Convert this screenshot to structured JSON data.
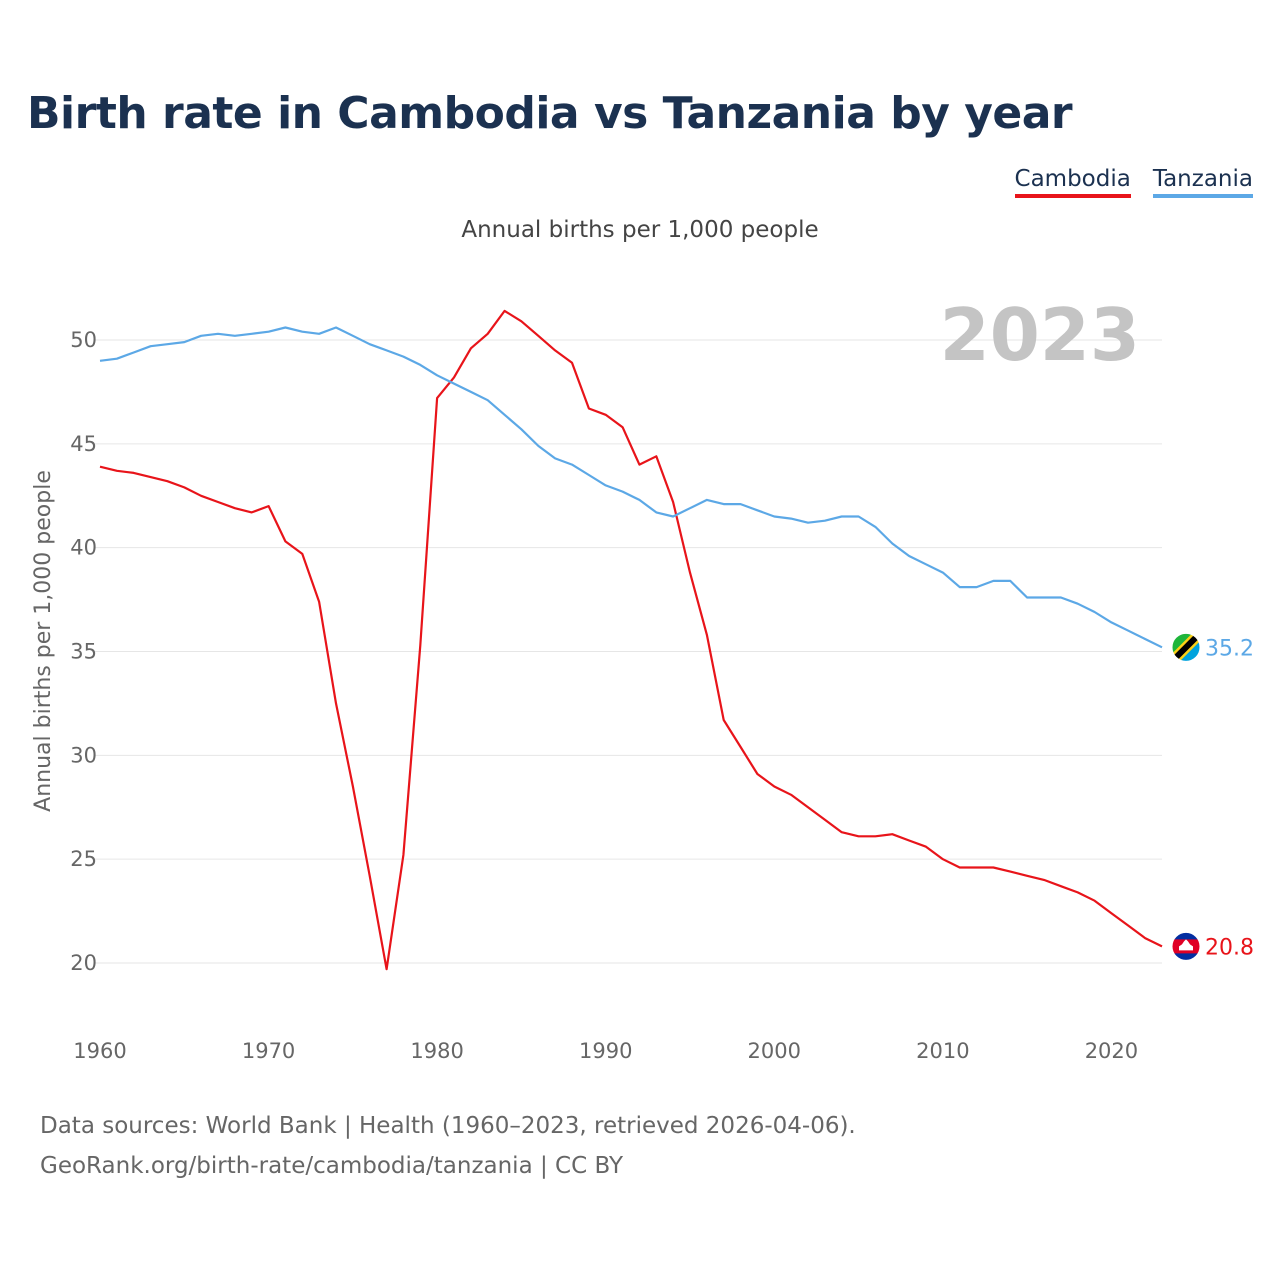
{
  "title": "Birth rate in Cambodia vs Tanzania by year",
  "subtitle": "Annual births per 1,000 people",
  "footer": {
    "line1": "Data sources: World Bank | Health (1960–2023, retrieved 2026-04-06).",
    "line2": "GeoRank.org/birth-rate/cambodia/tanzania | CC BY"
  },
  "chart_data": {
    "type": "line",
    "title": "Birth rate in Cambodia vs Tanzania by year",
    "ylabel": "Annual births per 1,000 people",
    "xlabel": "",
    "xlim": [
      1960,
      2023
    ],
    "ylim": [
      17,
      53
    ],
    "x_ticks": [
      1960,
      1970,
      1980,
      1990,
      2000,
      2010,
      2020
    ],
    "y_ticks": [
      20,
      25,
      30,
      35,
      40,
      45,
      50
    ],
    "grid": true,
    "year_label": "2023",
    "x": [
      1960,
      1961,
      1962,
      1963,
      1964,
      1965,
      1966,
      1967,
      1968,
      1969,
      1970,
      1971,
      1972,
      1973,
      1974,
      1975,
      1976,
      1977,
      1978,
      1979,
      1980,
      1981,
      1982,
      1983,
      1984,
      1985,
      1986,
      1987,
      1988,
      1989,
      1990,
      1991,
      1992,
      1993,
      1994,
      1995,
      1996,
      1997,
      1998,
      1999,
      2000,
      2001,
      2002,
      2003,
      2004,
      2005,
      2006,
      2007,
      2008,
      2009,
      2010,
      2011,
      2012,
      2013,
      2014,
      2015,
      2016,
      2017,
      2018,
      2019,
      2020,
      2021,
      2022,
      2023
    ],
    "series": [
      {
        "name": "Cambodia",
        "color": "#e8141a",
        "icon": "cambodia-flag-icon",
        "end_label": "20.8",
        "values": [
          43.9,
          43.7,
          43.6,
          43.4,
          43.2,
          42.9,
          42.5,
          42.2,
          41.9,
          41.7,
          42.0,
          40.3,
          39.7,
          37.4,
          32.5,
          28.5,
          24.2,
          19.7,
          25.2,
          35.3,
          47.2,
          48.2,
          49.6,
          50.3,
          51.4,
          50.9,
          50.2,
          49.5,
          48.9,
          46.7,
          46.4,
          45.8,
          44.0,
          44.4,
          42.2,
          38.8,
          35.8,
          31.7,
          30.4,
          29.1,
          28.5,
          28.1,
          27.5,
          26.9,
          26.3,
          26.1,
          26.1,
          26.2,
          25.9,
          25.6,
          25.0,
          24.6,
          24.6,
          24.6,
          24.4,
          24.2,
          24.0,
          23.7,
          23.4,
          23.0,
          22.4,
          21.8,
          21.2,
          20.8
        ]
      },
      {
        "name": "Tanzania",
        "color": "#5ca8e6",
        "icon": "tanzania-flag-icon",
        "end_label": "35.2",
        "values": [
          49.0,
          49.1,
          49.4,
          49.7,
          49.8,
          49.9,
          50.2,
          50.3,
          50.2,
          50.3,
          50.4,
          50.6,
          50.4,
          50.3,
          50.6,
          50.2,
          49.8,
          49.5,
          49.2,
          48.8,
          48.3,
          47.9,
          47.5,
          47.1,
          46.4,
          45.7,
          44.9,
          44.3,
          44.0,
          43.5,
          43.0,
          42.7,
          42.3,
          41.7,
          41.5,
          41.9,
          42.3,
          42.1,
          42.1,
          41.8,
          41.5,
          41.4,
          41.2,
          41.3,
          41.5,
          41.5,
          41.0,
          40.2,
          39.6,
          39.2,
          38.8,
          38.1,
          38.1,
          38.4,
          38.4,
          37.6,
          37.6,
          37.6,
          37.3,
          36.9,
          36.4,
          36.0,
          35.6,
          35.2
        ]
      }
    ]
  }
}
